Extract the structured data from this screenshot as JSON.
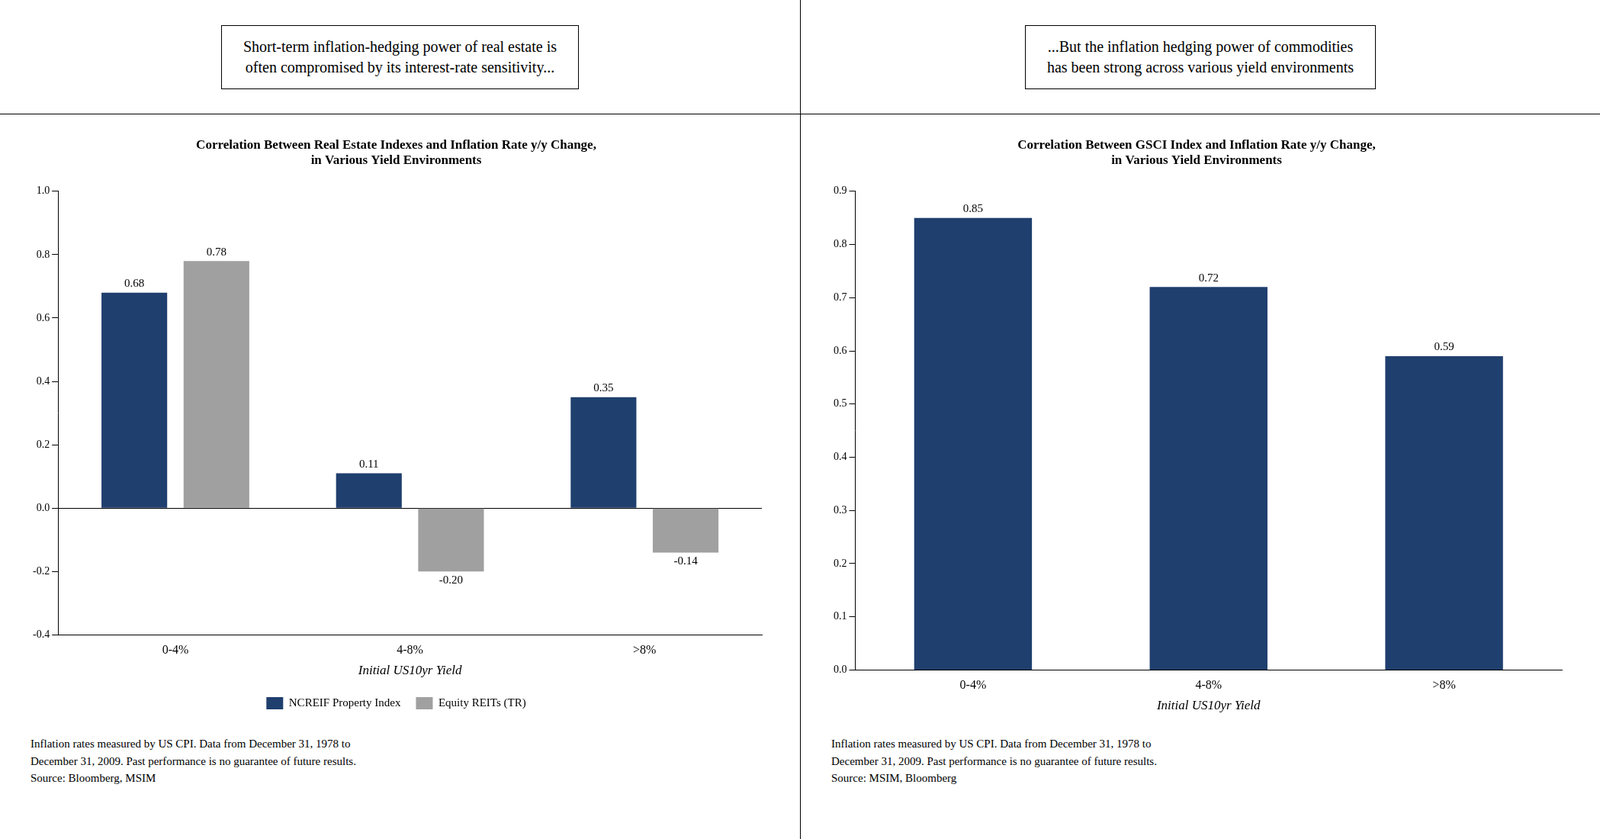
{
  "chart_data": [
    {
      "type": "bar",
      "title": "Short-term inflation-hedging power of real estate is\noften compromised by its interest-rate sensitivity...",
      "subtitle": "Correlation Between Real Estate Indexes and Inflation Rate y/y Change,\nin Various Yield Environments",
      "annotations": [
        "Inflation rates measured by US CPI. Data from December 31, 1978 to\nDecember 31, 2009. Past performance is no guarantee of future results.\nSource: Bloomberg, MSIM"
      ],
      "categories": [
        "0-4%",
        "4-8%",
        ">8%"
      ],
      "xlabel": "Initial US10yr Yield",
      "series": [
        {
          "name": "NCREIF Property Index",
          "color": "#1F3F6E",
          "values": [
            0.68,
            0.11,
            0.35
          ]
        },
        {
          "name": "Equity REITs (TR)",
          "color": "#A0A0A0",
          "values": [
            0.78,
            -0.2,
            -0.14
          ],
          "value_labels": [
            "0.78",
            "-0.20",
            "-0.14"
          ]
        }
      ],
      "ylim": [
        -0.4,
        1.0
      ],
      "yticks": [
        -0.4,
        -0.2,
        {
          "value": 0,
          "label": "0.0"
        },
        0.2,
        0.4,
        0.6,
        0.8,
        {
          "value": 1,
          "label": "1.0"
        }
      ],
      "grid": false,
      "legend": "bottom",
      "data_labels": true
    },
    {
      "type": "bar",
      "title": "...But the inflation hedging power of commodities\nhas been strong across various yield environments",
      "subtitle": "Correlation Between GSCI Index and Inflation Rate y/y Change,\nin Various Yield Environments",
      "annotations": [
        "Inflation rates measured by US CPI. Data from December 31, 1978 to\nDecember 31, 2009. Past performance is no guarantee of future results.\nSource: MSIM, Bloomberg"
      ],
      "categories": [
        "0-4%",
        "4-8%",
        ">8%"
      ],
      "xlabel": "Initial US10yr Yield",
      "values": [
        0.85,
        0.72,
        0.59
      ],
      "color": "#1F3F6E",
      "ylim": [
        0.0,
        0.9
      ],
      "yticks": [
        {
          "value": 0,
          "label": "0.0"
        },
        0.1,
        0.2,
        0.3,
        0.4,
        0.5,
        0.6,
        0.7,
        0.8,
        0.9
      ],
      "grid": false,
      "data_labels": true
    }
  ]
}
